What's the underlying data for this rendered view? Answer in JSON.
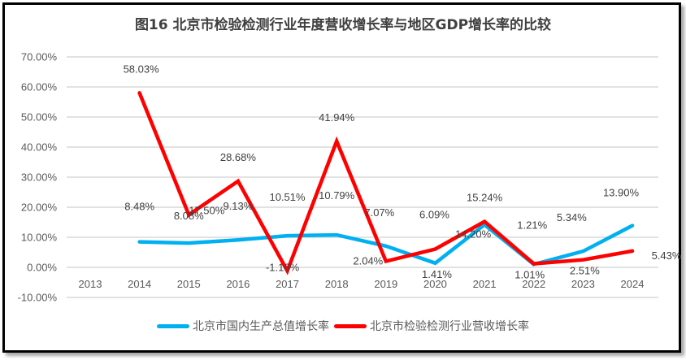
{
  "chart_data": {
    "type": "line",
    "title": "图16 北京市检验检测行业年度营收增长率与地区GDP增长率的比较",
    "xlabel": "",
    "ylabel": "",
    "categories": [
      "2013",
      "2014",
      "2015",
      "2016",
      "2017",
      "2018",
      "2019",
      "2020",
      "2021",
      "2022",
      "2023",
      "2024"
    ],
    "ylim": [
      -10,
      70
    ],
    "yticks": [
      "70.00%",
      "60.00%",
      "50.00%",
      "40.00%",
      "30.00%",
      "20.00%",
      "10.00%",
      "0.00%",
      "-10.00%"
    ],
    "ytick_values": [
      70,
      60,
      50,
      40,
      30,
      20,
      10,
      0,
      -10
    ],
    "grid": true,
    "legend_position": "bottom",
    "series": [
      {
        "name": "北京市国内生产总值增长率",
        "color": "#00B0F0",
        "values": [
          null,
          8.48,
          8.08,
          9.13,
          10.51,
          10.79,
          7.07,
          1.41,
          14.2,
          1.01,
          5.34,
          13.9
        ],
        "labels": [
          null,
          "8.48%",
          "8.08%",
          "9.13%",
          "10.51%",
          "10.79%",
          "7.07%",
          "1.41%",
          "14.20%",
          "1.01%",
          "5.34%",
          "13.90%"
        ]
      },
      {
        "name": "北京市检验检测行业营收增长率",
        "color": "#FF0000",
        "values": [
          null,
          58.03,
          17.5,
          28.68,
          -1.16,
          41.94,
          2.04,
          6.09,
          15.24,
          1.21,
          2.51,
          5.43
        ],
        "labels": [
          null,
          "58.03%",
          "17.50%",
          "28.68%",
          "-1.16%",
          "41.94%",
          "2.04%",
          "6.09%",
          "15.24%",
          "1.21%",
          "2.51%",
          "5.43%"
        ]
      }
    ]
  },
  "colors": {
    "grid": "#D9D9D9",
    "frame": "#000000"
  }
}
